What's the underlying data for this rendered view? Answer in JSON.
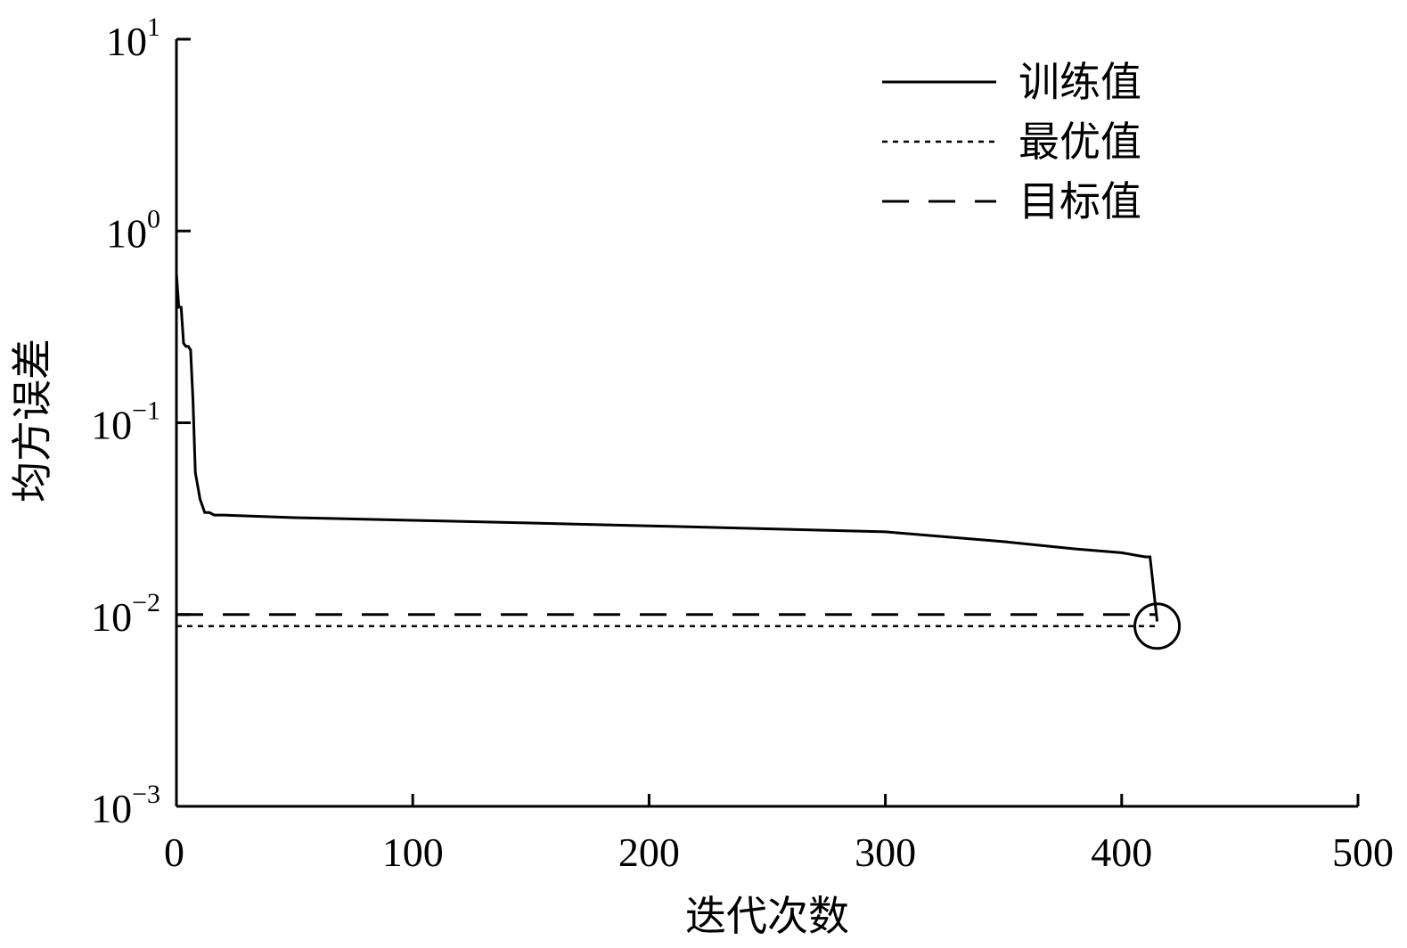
{
  "chart_data": {
    "type": "line",
    "xlabel": "迭代次数",
    "ylabel": "均方误差",
    "xlim": [
      0,
      500
    ],
    "ylim": [
      0.001,
      10
    ],
    "yscale": "log",
    "x_ticks": [
      "0",
      "100",
      "200",
      "300",
      "400",
      "500"
    ],
    "y_ticks": [
      {
        "base": "10",
        "exp": "1"
      },
      {
        "base": "10",
        "exp": "0"
      },
      {
        "base": "10",
        "exp": "−1"
      },
      {
        "base": "10",
        "exp": "−2"
      },
      {
        "base": "10",
        "exp": "−3"
      }
    ],
    "legend_position": "top-right",
    "series": [
      {
        "name": "训练值",
        "style": "solid",
        "x": [
          0,
          1,
          2,
          3,
          4,
          5,
          6,
          7,
          8,
          10,
          12,
          14,
          16,
          20,
          50,
          100,
          150,
          200,
          250,
          300,
          350,
          380,
          400,
          410,
          412,
          415
        ],
        "y": [
          0.6,
          0.4,
          0.4,
          0.26,
          0.25,
          0.25,
          0.24,
          0.13,
          0.055,
          0.04,
          0.034,
          0.034,
          0.033,
          0.033,
          0.032,
          0.031,
          0.03,
          0.029,
          0.028,
          0.027,
          0.024,
          0.022,
          0.021,
          0.02,
          0.02,
          0.0092
        ]
      },
      {
        "name": "最优值",
        "style": "dotted",
        "x": [
          0,
          415
        ],
        "y": [
          0.0087,
          0.0087
        ]
      },
      {
        "name": "目标值",
        "style": "dashed",
        "x": [
          0,
          415
        ],
        "y": [
          0.01,
          0.01
        ]
      }
    ],
    "marker": {
      "x": 415,
      "y": 0.0087,
      "shape": "circle"
    }
  }
}
